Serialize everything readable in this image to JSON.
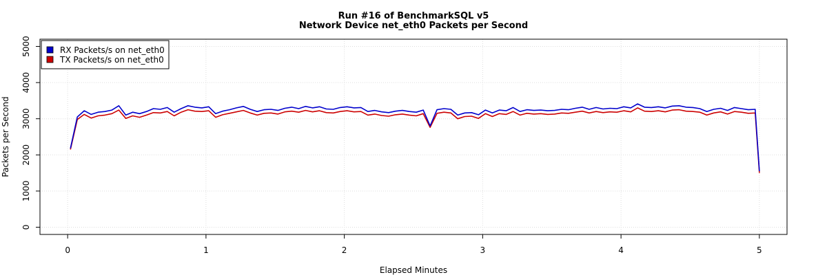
{
  "chart_data": {
    "type": "line",
    "title": "Run #16 of BenchmarkSQL v5",
    "subtitle": "Network Device net_eth0 Packets per Second",
    "xlabel": "Elapsed Minutes",
    "ylabel": "Packets per Second",
    "xlim": [
      -0.2,
      5.2
    ],
    "ylim": [
      -200,
      5200
    ],
    "xticks": [
      "0",
      "1",
      "2",
      "3",
      "4",
      "5"
    ],
    "yticks": [
      "0",
      "1000",
      "2000",
      "3000",
      "4000",
      "5000"
    ],
    "grid": true,
    "legend_position": "top-left",
    "series": [
      {
        "name": "RX Packets/s on net_eth0",
        "color": "#0000cc",
        "x": [
          0.02,
          0.07,
          0.12,
          0.17,
          0.22,
          0.27,
          0.32,
          0.37,
          0.42,
          0.47,
          0.52,
          0.57,
          0.62,
          0.67,
          0.72,
          0.77,
          0.82,
          0.87,
          0.92,
          0.97,
          1.02,
          1.07,
          1.12,
          1.17,
          1.22,
          1.27,
          1.32,
          1.37,
          1.42,
          1.47,
          1.52,
          1.57,
          1.62,
          1.67,
          1.72,
          1.77,
          1.82,
          1.87,
          1.92,
          1.97,
          2.02,
          2.07,
          2.12,
          2.17,
          2.22,
          2.27,
          2.32,
          2.37,
          2.42,
          2.47,
          2.52,
          2.57,
          2.62,
          2.67,
          2.72,
          2.77,
          2.82,
          2.87,
          2.92,
          2.97,
          3.02,
          3.07,
          3.12,
          3.17,
          3.22,
          3.27,
          3.32,
          3.37,
          3.42,
          3.47,
          3.52,
          3.57,
          3.62,
          3.67,
          3.72,
          3.77,
          3.82,
          3.87,
          3.92,
          3.97,
          4.02,
          4.07,
          4.12,
          4.17,
          4.22,
          4.27,
          4.32,
          4.37,
          4.42,
          4.47,
          4.52,
          4.57,
          4.62,
          4.67,
          4.72,
          4.77,
          4.82,
          4.87,
          4.92,
          4.97,
          5.0
        ],
        "values": [
          2180,
          3050,
          3220,
          3120,
          3180,
          3200,
          3240,
          3360,
          3100,
          3180,
          3140,
          3200,
          3280,
          3260,
          3310,
          3180,
          3280,
          3360,
          3320,
          3300,
          3330,
          3140,
          3210,
          3250,
          3300,
          3340,
          3260,
          3200,
          3250,
          3260,
          3230,
          3290,
          3320,
          3280,
          3340,
          3300,
          3330,
          3270,
          3260,
          3310,
          3330,
          3300,
          3310,
          3200,
          3230,
          3190,
          3170,
          3210,
          3230,
          3200,
          3180,
          3240,
          2800,
          3250,
          3280,
          3260,
          3100,
          3160,
          3170,
          3110,
          3240,
          3160,
          3240,
          3220,
          3310,
          3200,
          3250,
          3230,
          3240,
          3220,
          3230,
          3260,
          3250,
          3290,
          3320,
          3260,
          3310,
          3270,
          3290,
          3280,
          3330,
          3300,
          3410,
          3320,
          3310,
          3330,
          3300,
          3350,
          3360,
          3320,
          3310,
          3280,
          3200,
          3260,
          3290,
          3230,
          3310,
          3280,
          3250,
          3260,
          1550
        ]
      },
      {
        "name": "TX Packets/s on net_eth0",
        "color": "#cc0000",
        "x": [
          0.02,
          0.07,
          0.12,
          0.17,
          0.22,
          0.27,
          0.32,
          0.37,
          0.42,
          0.47,
          0.52,
          0.57,
          0.62,
          0.67,
          0.72,
          0.77,
          0.82,
          0.87,
          0.92,
          0.97,
          1.02,
          1.07,
          1.12,
          1.17,
          1.22,
          1.27,
          1.32,
          1.37,
          1.42,
          1.47,
          1.52,
          1.57,
          1.62,
          1.67,
          1.72,
          1.77,
          1.82,
          1.87,
          1.92,
          1.97,
          2.02,
          2.07,
          2.12,
          2.17,
          2.22,
          2.27,
          2.32,
          2.37,
          2.42,
          2.47,
          2.52,
          2.57,
          2.62,
          2.67,
          2.72,
          2.77,
          2.82,
          2.87,
          2.92,
          2.97,
          3.02,
          3.07,
          3.12,
          3.17,
          3.22,
          3.27,
          3.32,
          3.37,
          3.42,
          3.47,
          3.52,
          3.57,
          3.62,
          3.67,
          3.72,
          3.77,
          3.82,
          3.87,
          3.92,
          3.97,
          4.02,
          4.07,
          4.12,
          4.17,
          4.22,
          4.27,
          4.32,
          4.37,
          4.42,
          4.47,
          4.52,
          4.57,
          4.62,
          4.67,
          4.72,
          4.77,
          4.82,
          4.87,
          4.92,
          4.97,
          5.0
        ],
        "values": [
          2150,
          2980,
          3120,
          3020,
          3080,
          3100,
          3140,
          3240,
          3010,
          3080,
          3040,
          3100,
          3170,
          3160,
          3200,
          3080,
          3180,
          3250,
          3210,
          3200,
          3220,
          3040,
          3110,
          3150,
          3190,
          3230,
          3160,
          3100,
          3150,
          3160,
          3130,
          3190,
          3210,
          3180,
          3230,
          3190,
          3220,
          3170,
          3160,
          3200,
          3220,
          3190,
          3200,
          3100,
          3130,
          3090,
          3070,
          3110,
          3130,
          3100,
          3080,
          3140,
          2760,
          3150,
          3180,
          3160,
          3000,
          3060,
          3070,
          3010,
          3140,
          3060,
          3140,
          3120,
          3200,
          3100,
          3150,
          3130,
          3140,
          3120,
          3130,
          3160,
          3150,
          3180,
          3210,
          3160,
          3200,
          3170,
          3190,
          3180,
          3220,
          3190,
          3300,
          3210,
          3200,
          3220,
          3190,
          3240,
          3250,
          3210,
          3200,
          3180,
          3100,
          3160,
          3190,
          3130,
          3200,
          3180,
          3150,
          3160,
          1500
        ]
      }
    ]
  }
}
